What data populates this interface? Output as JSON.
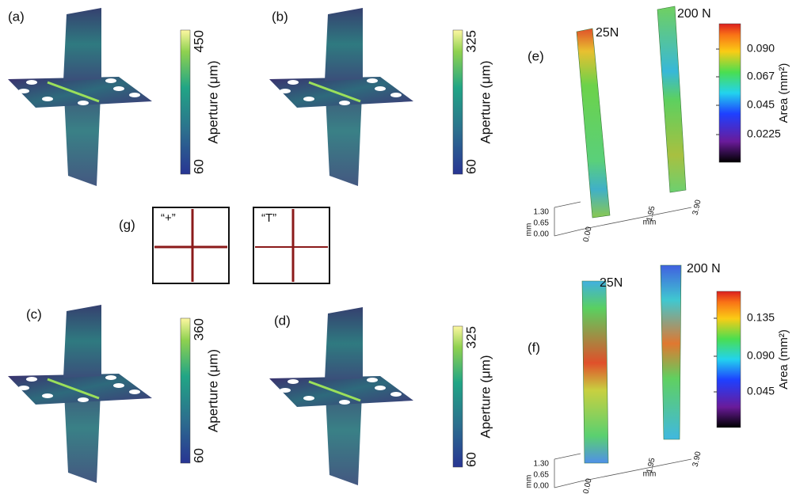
{
  "aperture_panels": [
    {
      "label": "(a)",
      "colorbar": {
        "title": "Aperture (μm)",
        "ticks": [
          "450",
          "60"
        ]
      }
    },
    {
      "label": "(b)",
      "colorbar": {
        "title": "Aperture (μm)",
        "ticks": [
          "325",
          "60"
        ]
      }
    },
    {
      "label": "(c)",
      "colorbar": {
        "title": "Aperture (μm)",
        "ticks": [
          "360",
          "60"
        ]
      }
    },
    {
      "label": "(d)",
      "colorbar": {
        "title": "Aperture (μm)",
        "ticks": [
          "325",
          "60"
        ]
      }
    }
  ],
  "inset": {
    "label": "(g)",
    "boxes": [
      "“+”",
      "“T”"
    ]
  },
  "area_panels": [
    {
      "label": "(e)",
      "samples": [
        "25N",
        "200 N"
      ],
      "colorbar": {
        "title": "Area (mm²)",
        "ticks": [
          "0.090",
          "0.067",
          "0.045",
          "0.0225"
        ]
      },
      "axes": {
        "y_ticks": [
          "1.30",
          "0.65",
          "0.00"
        ],
        "x_ticks": [
          "0.00",
          "1.95",
          "3.90"
        ],
        "x_unit": "mm",
        "y_unit": "mm"
      }
    },
    {
      "label": "(f)",
      "samples": [
        "25N",
        "200 N"
      ],
      "colorbar": {
        "title": "Area (mm²)",
        "ticks": [
          "0.135",
          "0.090",
          "0.045"
        ]
      },
      "axes": {
        "y_ticks": [
          "1.30",
          "0.65",
          "0.00"
        ],
        "x_ticks": [
          "0.00",
          "1.95",
          "3.90"
        ],
        "x_unit": "mm",
        "y_unit": "mm"
      }
    }
  ]
}
